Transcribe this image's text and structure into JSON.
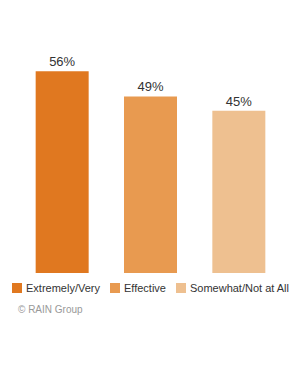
{
  "chart_data": {
    "type": "bar",
    "categories": [
      "Extremely/Very",
      "Effective",
      "Somewhat/Not at All"
    ],
    "values": [
      56,
      49,
      45
    ],
    "value_labels": [
      "56%",
      "49%",
      "45%"
    ],
    "data_labels": true,
    "colors": [
      "#E07820",
      "#E89A50",
      "#EEC090"
    ],
    "ylim": [
      0,
      68
    ],
    "tick_labels": false,
    "grid": false,
    "legend": "bottom",
    "annotations": [
      "© RAIN Group"
    ]
  }
}
